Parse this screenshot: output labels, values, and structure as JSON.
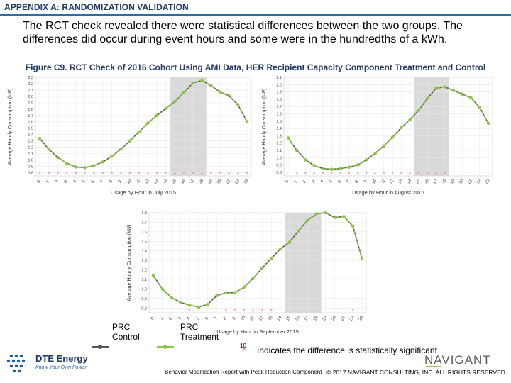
{
  "header": {
    "title": "APPENDIX A: RANDOMIZATION VALIDATION"
  },
  "body_text": "The RCT check revealed there were statistical differences between the two groups. The differences did occur during event hours and some were in the hundredths of a kWh.",
  "figure_title": "Figure C9. RCT Check of 2016 Cohort Using AMI Data, HER Recipient Capacity Component Treatment and Control",
  "colors": {
    "control": "#555555",
    "treatment": "#8dc63f",
    "sig": "#e07070",
    "shade": "#d9d9d9",
    "grid": "#e8e8e8",
    "header": "#1f3864"
  },
  "chart_data": [
    {
      "type": "line",
      "title": "",
      "xlabel": "Usage by Hour in July 2015",
      "ylabel": "Average Hourly Consumption (kW)",
      "x": [
        0,
        1,
        2,
        3,
        4,
        5,
        6,
        7,
        8,
        9,
        10,
        11,
        12,
        13,
        14,
        15,
        16,
        17,
        18,
        19,
        20,
        21,
        22,
        23
      ],
      "ylim": [
        0.75,
        2.3
      ],
      "yticks": [
        "0.8",
        "0.9",
        "1.0",
        "1.1",
        "1.2",
        "1.3",
        "1.4",
        "1.5",
        "1.6",
        "1.7",
        "1.8",
        "1.9",
        "2.0",
        "2.1",
        "2.2",
        "2.3"
      ],
      "shaded_hours": [
        15,
        18
      ],
      "series": [
        {
          "name": "PRC Control",
          "values": [
            1.34,
            1.17,
            1.04,
            0.95,
            0.89,
            0.88,
            0.91,
            0.97,
            1.06,
            1.17,
            1.3,
            1.44,
            1.58,
            1.7,
            1.81,
            1.92,
            2.06,
            2.21,
            2.25,
            2.17,
            2.07,
            2.01,
            1.87,
            1.6
          ]
        },
        {
          "name": "PRC Treatment",
          "values": [
            1.34,
            1.17,
            1.04,
            0.95,
            0.89,
            0.88,
            0.91,
            0.97,
            1.06,
            1.17,
            1.3,
            1.44,
            1.58,
            1.7,
            1.81,
            1.92,
            2.06,
            2.21,
            2.25,
            2.17,
            2.07,
            2.01,
            1.87,
            1.6
          ]
        }
      ],
      "significant_hours": [
        0,
        1,
        2,
        3,
        4,
        5,
        6,
        7,
        8,
        9,
        10,
        11,
        12,
        13,
        14,
        15,
        16,
        17,
        18,
        19,
        20,
        21,
        22,
        23
      ]
    },
    {
      "type": "line",
      "title": "",
      "xlabel": "Usage by Hour in August 2015",
      "ylabel": "Average Hourly Consumption (kW)",
      "x": [
        0,
        1,
        2,
        3,
        4,
        5,
        6,
        7,
        8,
        9,
        10,
        11,
        12,
        13,
        14,
        15,
        16,
        17,
        18,
        19,
        20,
        21,
        22,
        23
      ],
      "ylim": [
        0.75,
        2.1
      ],
      "yticks": [
        "0.8",
        "0.9",
        "1.0",
        "1.1",
        "1.2",
        "1.3",
        "1.4",
        "1.5",
        "1.6",
        "1.7",
        "1.8",
        "1.9",
        "2.0",
        "2.1"
      ],
      "shaded_hours": [
        15,
        18
      ],
      "series": [
        {
          "name": "PRC Control",
          "values": [
            1.27,
            1.1,
            0.97,
            0.89,
            0.85,
            0.84,
            0.85,
            0.87,
            0.9,
            0.97,
            1.06,
            1.16,
            1.28,
            1.41,
            1.52,
            1.65,
            1.81,
            1.95,
            1.97,
            1.92,
            1.87,
            1.82,
            1.69,
            1.47
          ]
        },
        {
          "name": "PRC Treatment",
          "values": [
            1.27,
            1.1,
            0.97,
            0.89,
            0.85,
            0.84,
            0.85,
            0.87,
            0.9,
            0.97,
            1.06,
            1.16,
            1.28,
            1.41,
            1.52,
            1.65,
            1.81,
            1.95,
            1.97,
            1.92,
            1.87,
            1.82,
            1.69,
            1.47
          ]
        }
      ],
      "significant_hours": [
        1,
        2,
        3,
        4,
        5,
        6,
        7,
        8,
        9,
        10,
        11,
        12,
        13,
        14,
        15,
        16,
        17,
        18
      ]
    },
    {
      "type": "line",
      "title": "",
      "xlabel": "Usage by Hour in September 2015",
      "ylabel": "Average Hourly Consumption (kW)",
      "x": [
        0,
        1,
        2,
        3,
        4,
        5,
        6,
        7,
        8,
        9,
        10,
        11,
        12,
        13,
        14,
        15,
        16,
        17,
        18,
        19,
        20,
        21,
        22,
        23
      ],
      "ylim": [
        0.75,
        1.8
      ],
      "yticks": [
        "0.8",
        "0.9",
        "1.0",
        "1.1",
        "1.2",
        "1.3",
        "1.4",
        "1.5",
        "1.6",
        "1.7",
        "1.8"
      ],
      "shaded_hours": [
        15,
        18
      ],
      "series": [
        {
          "name": "PRC Control",
          "values": [
            1.14,
            1.0,
            0.91,
            0.86,
            0.83,
            0.81,
            0.84,
            0.93,
            0.96,
            0.96,
            1.02,
            1.11,
            1.22,
            1.32,
            1.42,
            1.49,
            1.61,
            1.72,
            1.79,
            1.8,
            1.75,
            1.76,
            1.66,
            1.32
          ]
        },
        {
          "name": "PRC Treatment",
          "values": [
            1.14,
            1.0,
            0.91,
            0.86,
            0.83,
            0.81,
            0.84,
            0.93,
            0.96,
            0.96,
            1.02,
            1.11,
            1.22,
            1.32,
            1.42,
            1.49,
            1.61,
            1.72,
            1.79,
            1.8,
            1.75,
            1.76,
            1.66,
            1.32
          ]
        }
      ],
      "significant_hours": [
        4,
        8,
        9,
        10,
        11,
        12,
        13,
        22
      ]
    }
  ],
  "legend": {
    "control_label": "PRC Control",
    "treatment_label": "PRC Treatment",
    "sig_label": "Indicates the difference is statistically significant"
  },
  "footer": {
    "page_number": "10",
    "report_name": "Behavior Modification Report with Peak Reduction Component",
    "copyright": "© 2017 NAVIGANT CONSULTING, INC. ALL RIGHTS RESERVED",
    "dte_name": "DTE Energy",
    "dte_tagline": "Know Your Own Power.",
    "navigant_name": "NAVIGANT"
  }
}
